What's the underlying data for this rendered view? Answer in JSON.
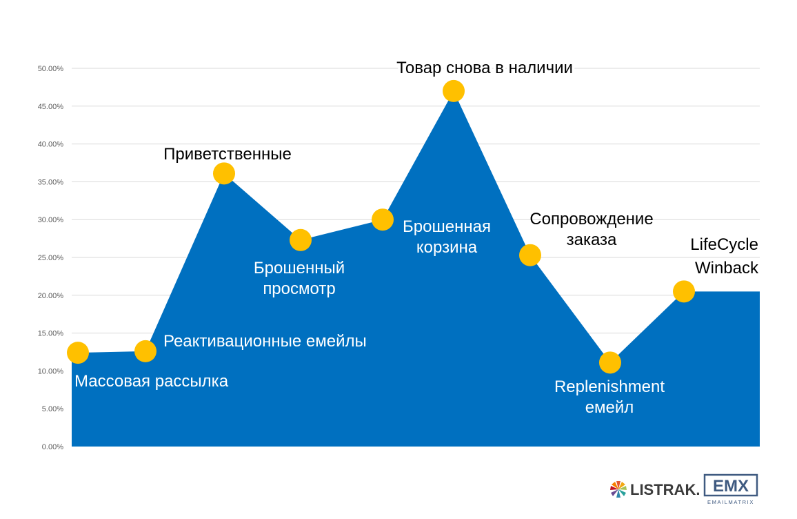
{
  "chart_data": {
    "type": "area",
    "y_ticks": [
      "0.00%",
      "5.00%",
      "10.00%",
      "15.00%",
      "20.00%",
      "25.00%",
      "30.00%",
      "35.00%",
      "40.00%",
      "45.00%",
      "50.00%"
    ],
    "ylim": [
      0,
      50
    ],
    "grid": true,
    "points": [
      {
        "label": "",
        "value": 12.4
      },
      {
        "label": "",
        "value": 12.6
      },
      {
        "label": "",
        "value": 36.1
      },
      {
        "label": "",
        "value": 27.3
      },
      {
        "label": "",
        "value": 30.0
      },
      {
        "label": "",
        "value": 47.0
      },
      {
        "label": "",
        "value": 25.3
      },
      {
        "label": "",
        "value": 11.1
      },
      {
        "label": "",
        "value": 20.5
      }
    ],
    "annotations": [
      {
        "lines": [
          "Массовая рассылка"
        ],
        "color": "#ffffff"
      },
      {
        "lines": [
          "Реактивационные емейлы"
        ],
        "color": "#ffffff"
      },
      {
        "lines": [
          "Приветственные"
        ],
        "color": "#000000"
      },
      {
        "lines": [
          "Брошенный",
          "просмотр"
        ],
        "color": "#ffffff"
      },
      {
        "lines": [
          "Брошенная",
          "корзина"
        ],
        "color": "#ffffff"
      },
      {
        "lines": [
          "Товар снова в наличии"
        ],
        "color": "#000000"
      },
      {
        "lines": [
          "Сопровождение",
          "заказа"
        ],
        "color": "#000000"
      },
      {
        "lines": [
          "Replenishment",
          "емейл"
        ],
        "color": "#ffffff"
      },
      {
        "lines": [
          "LifeCycle",
          "Winback"
        ],
        "color": "#000000"
      }
    ],
    "colors": {
      "area": "#0070c0",
      "marker": "#ffc000",
      "grid": "#d9d9d9",
      "tick": "#595959"
    }
  },
  "logos": {
    "listrak": {
      "text": "LISTRAK."
    },
    "emx": {
      "text": "EMX",
      "subtext": "EMAILMATRIX"
    }
  }
}
